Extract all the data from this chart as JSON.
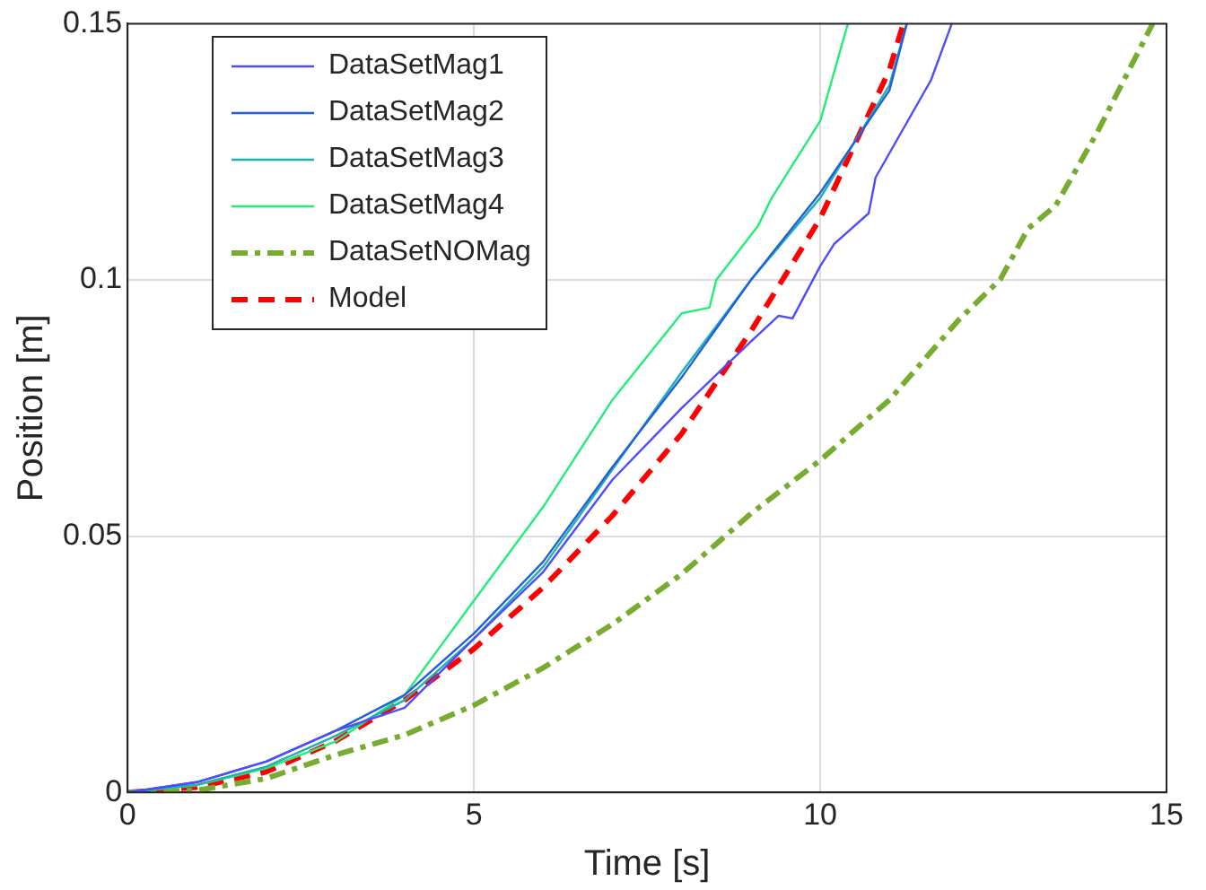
{
  "chart_data": {
    "type": "line",
    "xlabel": "Time [s]",
    "ylabel": "Position [m]",
    "xlim": [
      0,
      15
    ],
    "xticks": [
      0,
      5,
      10,
      15
    ],
    "ylim": [
      0,
      0.15
    ],
    "yticks": [
      0,
      0.05,
      0.1,
      0.15
    ],
    "grid": true,
    "legend": "top left",
    "marker": "none",
    "series": [
      {
        "name": "DataSetMag1",
        "color": "#4d4dff",
        "line_style": "solid",
        "x": [
          0,
          1,
          2,
          3,
          4,
          5,
          6,
          7,
          8,
          9,
          9.4,
          9.6,
          10,
          10.2,
          10.7,
          10.8,
          11.6,
          11.9
        ],
        "values": [
          0,
          0.002,
          0.006,
          0.012,
          0.0165,
          0.03,
          0.043,
          0.061,
          0.075,
          0.088,
          0.093,
          0.0925,
          0.1027,
          0.107,
          0.113,
          0.12,
          0.139,
          0.15
        ]
      },
      {
        "name": "DataSetMag2",
        "color": "#1f5fe0",
        "line_style": "solid",
        "x": [
          0,
          1,
          2,
          3,
          4,
          5,
          6,
          7,
          8,
          9,
          10,
          11,
          11.25
        ],
        "values": [
          0,
          0.002,
          0.006,
          0.012,
          0.019,
          0.031,
          0.045,
          0.0635,
          0.081,
          0.1,
          0.117,
          0.137,
          0.15
        ]
      },
      {
        "name": "DataSetMag3",
        "color": "#20b0b0",
        "line_style": "solid",
        "x": [
          0,
          1,
          2,
          3,
          4,
          5,
          6,
          7,
          8,
          9,
          10,
          11,
          11.25
        ],
        "values": [
          0,
          0.0015,
          0.005,
          0.011,
          0.018,
          0.03,
          0.044,
          0.063,
          0.082,
          0.1,
          0.116,
          0.138,
          0.15
        ]
      },
      {
        "name": "DataSetMag4",
        "color": "#22ee77",
        "line_style": "solid",
        "x": [
          0,
          1,
          2,
          3,
          4,
          5,
          6,
          7,
          8,
          8.4,
          8.5,
          9.1,
          9.3,
          10,
          10.4
        ],
        "values": [
          0,
          0.0014,
          0.0047,
          0.0099,
          0.019,
          0.0374,
          0.0557,
          0.0766,
          0.0935,
          0.0946,
          0.1,
          0.1105,
          0.116,
          0.131,
          0.15
        ]
      },
      {
        "name": "DataSetNOMag",
        "color": "#77ac30",
        "line_style": "dashdot",
        "x": [
          0,
          1,
          2,
          3,
          4,
          5,
          6,
          7,
          8,
          9,
          10,
          11,
          12,
          12.6,
          13,
          13.4,
          14,
          14.8
        ],
        "values": [
          0,
          0.0004,
          0.0027,
          0.0073,
          0.0112,
          0.017,
          0.0243,
          0.0328,
          0.0426,
          0.0544,
          0.0648,
          0.0766,
          0.0922,
          0.1001,
          0.11,
          0.1145,
          0.1288,
          0.15
        ]
      },
      {
        "name": "Model",
        "color": "#ff0000",
        "line_style": "dashed",
        "x": [
          0,
          1,
          2,
          3,
          4,
          5,
          6,
          7,
          8,
          9,
          10,
          11,
          11.2
        ],
        "values": [
          0,
          0.001,
          0.004,
          0.01,
          0.018,
          0.028,
          0.04,
          0.054,
          0.07,
          0.09,
          0.112,
          0.141,
          0.15
        ]
      }
    ]
  }
}
